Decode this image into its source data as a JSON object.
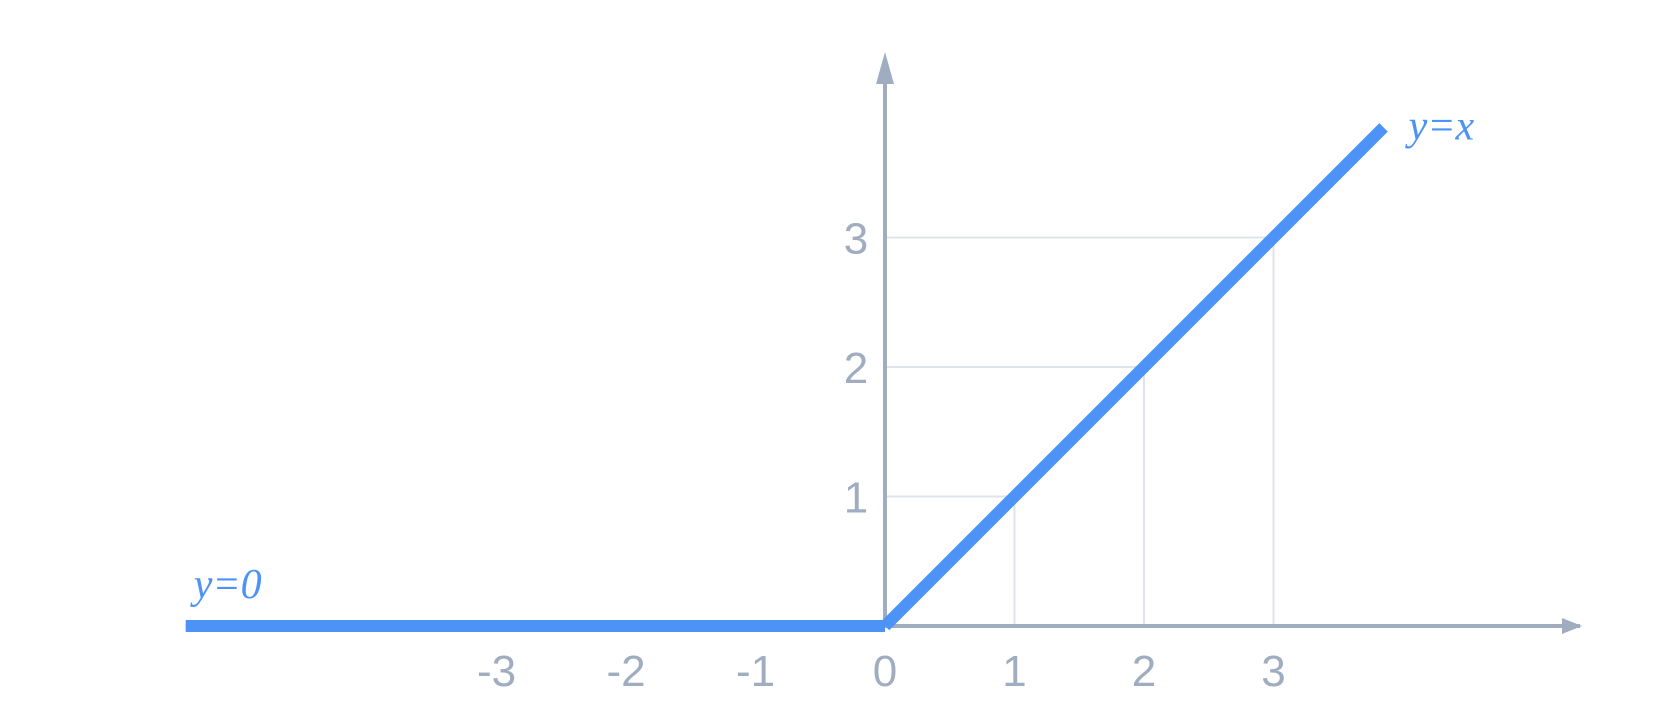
{
  "chart_data": {
    "type": "line",
    "title": "",
    "xlabel": "",
    "ylabel": "",
    "xlim": [
      -5.4,
      5.2
    ],
    "ylim": [
      0,
      4.3
    ],
    "grid": true,
    "x_ticks": [
      "-3",
      "-2",
      "-1",
      "0",
      "1",
      "2",
      "3"
    ],
    "y_ticks": [
      "1",
      "2",
      "3"
    ],
    "series": [
      {
        "x": [
          -5.4,
          0
        ],
        "y": [
          0,
          0
        ]
      },
      {
        "x": [
          0,
          3.85
        ],
        "y": [
          0,
          3.85
        ]
      }
    ],
    "annotations": [
      {
        "text": "y=0",
        "x": -5.4,
        "y": 0,
        "position": "above-start"
      },
      {
        "text": "y=x",
        "x": 3.85,
        "y": 3.85,
        "position": "right-end"
      }
    ],
    "colors": {
      "line": "#4d92f7",
      "axis": "#a0adc1",
      "grid": "#dfe3ea"
    }
  }
}
